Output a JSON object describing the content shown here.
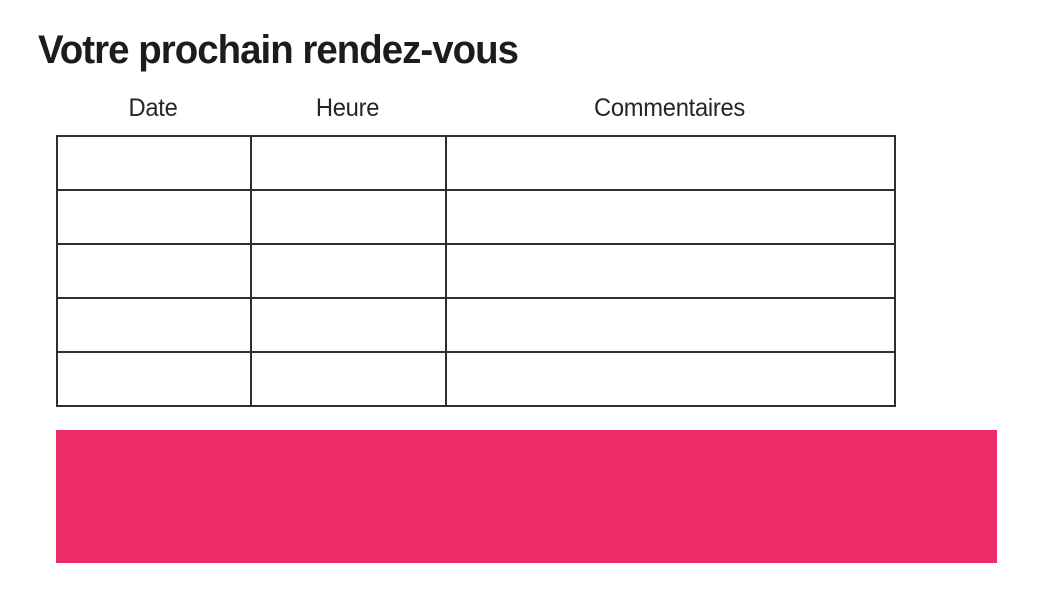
{
  "page": {
    "title": "Votre prochain rendez-vous"
  },
  "table": {
    "columns": [
      {
        "key": "date",
        "label": "Date"
      },
      {
        "key": "heure",
        "label": "Heure"
      },
      {
        "key": "commentaires",
        "label": "Commentaires"
      }
    ],
    "rows": [
      [
        "",
        "",
        ""
      ],
      [
        "",
        "",
        ""
      ],
      [
        "",
        "",
        ""
      ],
      [
        "",
        "",
        ""
      ],
      [
        "",
        "",
        ""
      ]
    ]
  },
  "colors": {
    "accent_pink": "#ED2D67",
    "table_border": "#2e2e2e",
    "title_text": "#1c1c1c"
  }
}
